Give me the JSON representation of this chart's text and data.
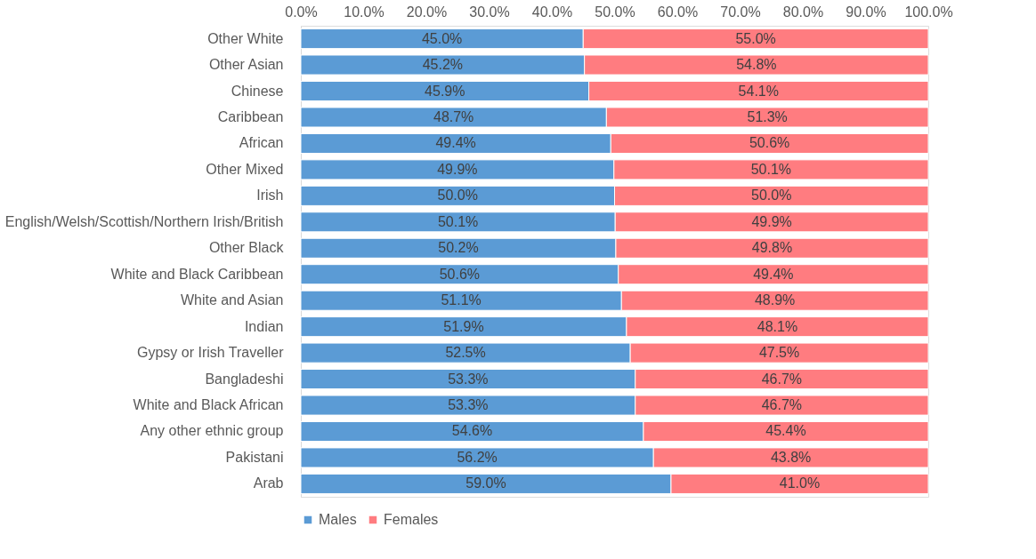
{
  "chart_data": {
    "type": "bar",
    "orientation": "horizontal",
    "stacked": true,
    "categories": [
      "Other White",
      "Other Asian",
      "Chinese",
      "Caribbean",
      "African",
      "Other Mixed",
      "Irish",
      "English/Welsh/Scottish/Northern Irish/British",
      "Other Black",
      "White and Black Caribbean",
      "White and Asian",
      "Indian",
      "Gypsy or Irish Traveller",
      "Bangladeshi",
      "White and Black African",
      "Any other ethnic group",
      "Pakistani",
      "Arab"
    ],
    "series": [
      {
        "name": "Males",
        "color": "#5b9bd5",
        "values": [
          45.0,
          45.2,
          45.9,
          48.7,
          49.4,
          49.9,
          50.0,
          50.1,
          50.2,
          50.6,
          51.1,
          51.9,
          52.5,
          53.3,
          53.3,
          54.6,
          56.2,
          59.0
        ],
        "value_labels": [
          "45.0%",
          "45.2%",
          "45.9%",
          "48.7%",
          "49.4%",
          "49.9%",
          "50.0%",
          "50.1%",
          "50.2%",
          "50.6%",
          "51.1%",
          "51.9%",
          "52.5%",
          "53.3%",
          "53.3%",
          "54.6%",
          "56.2%",
          "59.0%"
        ]
      },
      {
        "name": "Females",
        "color": "#ff7c80",
        "values": [
          55.0,
          54.8,
          54.1,
          51.3,
          50.6,
          50.1,
          50.0,
          49.9,
          49.8,
          49.4,
          48.9,
          48.1,
          47.5,
          46.7,
          46.7,
          45.4,
          43.8,
          41.0
        ],
        "value_labels": [
          "55.0%",
          "54.8%",
          "54.1%",
          "51.3%",
          "50.6%",
          "50.1%",
          "50.0%",
          "49.9%",
          "49.8%",
          "49.4%",
          "48.9%",
          "48.1%",
          "47.5%",
          "46.7%",
          "46.7%",
          "45.4%",
          "43.8%",
          "41.0%"
        ]
      }
    ],
    "xlim": [
      0,
      100
    ],
    "xticks": [
      {
        "value": 0,
        "label": "0.0%"
      },
      {
        "value": 10,
        "label": "10.0%"
      },
      {
        "value": 20,
        "label": "20.0%"
      },
      {
        "value": 30,
        "label": "30.0%"
      },
      {
        "value": 40,
        "label": "40.0%"
      },
      {
        "value": 50,
        "label": "50.0%"
      },
      {
        "value": 60,
        "label": "60.0%"
      },
      {
        "value": 70,
        "label": "70.0%"
      },
      {
        "value": 80,
        "label": "80.0%"
      },
      {
        "value": 90,
        "label": "90.0%"
      },
      {
        "value": 100,
        "label": "100.0%"
      }
    ],
    "grid": false,
    "legend": "bottom"
  }
}
